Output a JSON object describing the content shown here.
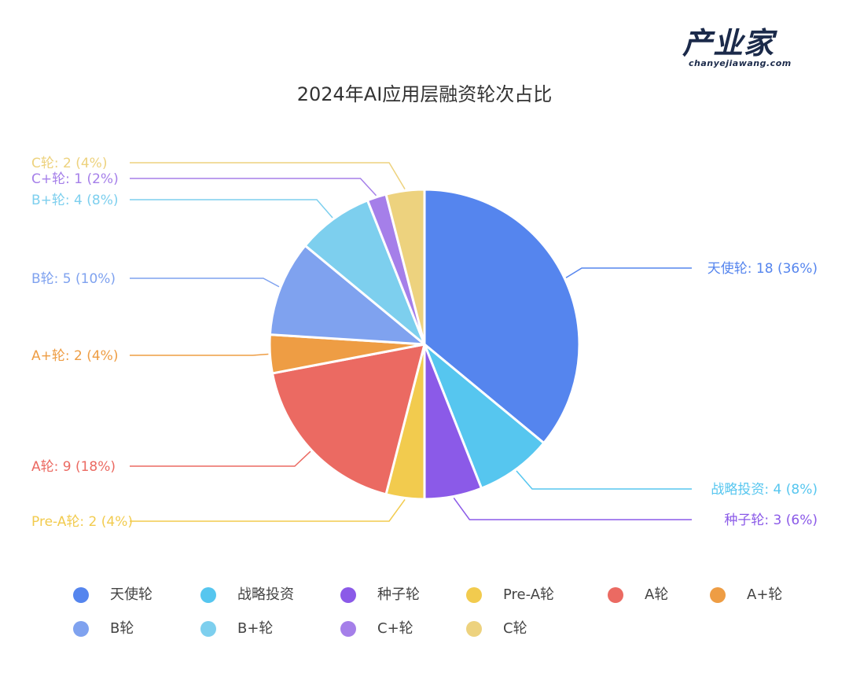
{
  "logo": {
    "name": "产业家",
    "sub": "chanyejiawang.com"
  },
  "chart_data": {
    "type": "pie",
    "title": "2024年AI应用层融资轮次占比",
    "unit": "",
    "slices": [
      {
        "label": "天使轮",
        "value": 18,
        "percent": "36%",
        "color": "#5585EE"
      },
      {
        "label": "战略投资",
        "value": 4,
        "percent": "8%",
        "color": "#56C6EF"
      },
      {
        "label": "种子轮",
        "value": 3,
        "percent": "6%",
        "color": "#8B5AE8"
      },
      {
        "label": "Pre-A轮",
        "value": 2,
        "percent": "4%",
        "color": "#F2CB4E"
      },
      {
        "label": "A轮",
        "value": 9,
        "percent": "18%",
        "color": "#EB6A62"
      },
      {
        "label": "A+轮",
        "value": 2,
        "percent": "4%",
        "color": "#EE9D44"
      },
      {
        "label": "B轮",
        "value": 5,
        "percent": "10%",
        "color": "#7FA2EF"
      },
      {
        "label": "B+轮",
        "value": 4,
        "percent": "8%",
        "color": "#7DCFEE"
      },
      {
        "label": "C+轮",
        "value": 1,
        "percent": "2%",
        "color": "#A57FE9"
      },
      {
        "label": "C轮",
        "value": 2,
        "percent": "4%",
        "color": "#EDD27E"
      }
    ],
    "legend_position": "bottom"
  }
}
